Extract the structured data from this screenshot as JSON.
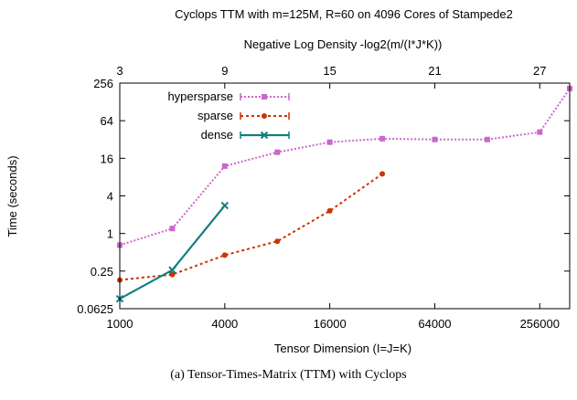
{
  "chart_data": {
    "type": "line",
    "title": "Cyclops TTM with m=125M, R=60 on 4096 Cores of Stampede2",
    "xlabel": "Tensor Dimension (I=J=K)",
    "x2label": "Negative Log Density -log2(m/(I*J*K))",
    "ylabel": "Time (seconds)",
    "x_scale": "log2",
    "y_scale": "log2",
    "xlim": [
      1000,
      380000
    ],
    "ylim": [
      0.0625,
      256
    ],
    "x_ticks": [
      {
        "value": 1000,
        "label": "1000"
      },
      {
        "value": 4000,
        "label": "4000"
      },
      {
        "value": 16000,
        "label": "16000"
      },
      {
        "value": 64000,
        "label": "64000"
      },
      {
        "value": 256000,
        "label": "256000"
      }
    ],
    "x2_ticks": [
      {
        "value": 3,
        "label": "3"
      },
      {
        "value": 9,
        "label": "9"
      },
      {
        "value": 15,
        "label": "15"
      },
      {
        "value": 21,
        "label": "21"
      },
      {
        "value": 27,
        "label": "27"
      }
    ],
    "y_ticks": [
      {
        "value": 256,
        "label": "256"
      },
      {
        "value": 64,
        "label": "64"
      },
      {
        "value": 16,
        "label": "16"
      },
      {
        "value": 4,
        "label": "4"
      },
      {
        "value": 1,
        "label": "1"
      },
      {
        "value": 0.25,
        "label": "0.25"
      },
      {
        "value": 0.0625,
        "label": "0.0625"
      }
    ],
    "grid": false,
    "legend_position": "top-left",
    "series": [
      {
        "name": "hypersparse",
        "color": "#cc66cc",
        "marker": "square",
        "line_style": "dotted",
        "x": [
          1000,
          2000,
          4000,
          8000,
          16000,
          32000,
          64000,
          128000,
          256000,
          380000
        ],
        "y": [
          0.65,
          1.2,
          12,
          20,
          29,
          33,
          32,
          32,
          42,
          210
        ]
      },
      {
        "name": "sparse",
        "color": "#cc3300",
        "marker": "circle",
        "line_style": "dotted",
        "x": [
          1000,
          2000,
          4000,
          8000,
          16000,
          32000
        ],
        "y": [
          0.18,
          0.22,
          0.45,
          0.75,
          2.3,
          9
        ]
      },
      {
        "name": "dense",
        "color": "#117f80",
        "marker": "x",
        "line_style": "solid",
        "x": [
          1000,
          2000,
          4000
        ],
        "y": [
          0.09,
          0.26,
          2.8
        ]
      }
    ]
  },
  "caption": "(a)  Tensor-Times-Matrix (TTM) with Cyclops"
}
